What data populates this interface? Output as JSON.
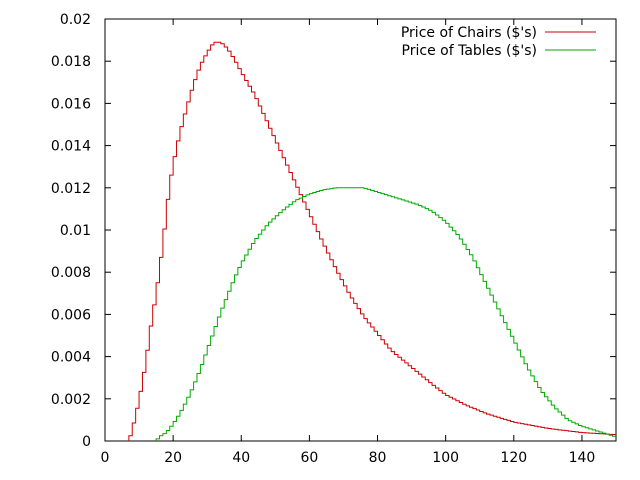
{
  "chart_data": {
    "type": "line",
    "style": "steps",
    "title": "",
    "xlabel": "",
    "ylabel": "",
    "xlim": [
      0,
      150
    ],
    "ylim": [
      0,
      0.02
    ],
    "x_ticks": [
      0,
      20,
      40,
      60,
      80,
      100,
      120,
      140
    ],
    "y_ticks": [
      0,
      0.002,
      0.004,
      0.006,
      0.008,
      0.01,
      0.012,
      0.014,
      0.016,
      0.018,
      0.02
    ],
    "x_tick_labels": [
      "0",
      "20",
      "40",
      "60",
      "80",
      "100",
      "120",
      "140"
    ],
    "y_tick_labels": [
      "0",
      "0.002",
      "0.004",
      "0.006",
      "0.008",
      "0.01",
      "0.012",
      "0.014",
      "0.016",
      "0.018",
      "0.02"
    ],
    "grid": false,
    "legend_position": "top-right",
    "series": [
      {
        "name": "Price of Chairs ($'s)",
        "color": "#cc0000",
        "points": [
          [
            7,
            0
          ],
          [
            8,
            0.0005
          ],
          [
            9,
            0.0012
          ],
          [
            10,
            0.0019
          ],
          [
            11,
            0.0028
          ],
          [
            12,
            0.0037
          ],
          [
            13,
            0.0049
          ],
          [
            14,
            0.006
          ],
          [
            15,
            0.0069
          ],
          [
            16,
            0.0081
          ],
          [
            17,
            0.0093
          ],
          [
            18,
            0.0108
          ],
          [
            19,
            0.0121
          ],
          [
            20,
            0.0131
          ],
          [
            22,
            0.0146
          ],
          [
            24,
            0.0158
          ],
          [
            26,
            0.0169
          ],
          [
            28,
            0.0178
          ],
          [
            30,
            0.0184
          ],
          [
            32,
            0.0189
          ],
          [
            34,
            0.0189
          ],
          [
            36,
            0.0186
          ],
          [
            38,
            0.0181
          ],
          [
            40,
            0.0175
          ],
          [
            44,
            0.0164
          ],
          [
            48,
            0.015
          ],
          [
            52,
            0.0136
          ],
          [
            56,
            0.0122
          ],
          [
            60,
            0.0108
          ],
          [
            64,
            0.0094
          ],
          [
            68,
            0.0081
          ],
          [
            72,
            0.0069
          ],
          [
            76,
            0.0059
          ],
          [
            80,
            0.0051
          ],
          [
            84,
            0.0043
          ],
          [
            90,
            0.0035
          ],
          [
            96,
            0.0027
          ],
          [
            100,
            0.0022
          ],
          [
            106,
            0.0017
          ],
          [
            112,
            0.0013
          ],
          [
            120,
            0.0009
          ],
          [
            130,
            0.0006
          ],
          [
            140,
            0.0004
          ],
          [
            150,
            0.0003
          ]
        ]
      },
      {
        "name": "Price of Tables ($'s)",
        "color": "#00aa00",
        "points": [
          [
            15,
            0
          ],
          [
            16,
            0.0002
          ],
          [
            18,
            0.0004
          ],
          [
            20,
            0.0008
          ],
          [
            22,
            0.0013
          ],
          [
            24,
            0.0019
          ],
          [
            26,
            0.0026
          ],
          [
            28,
            0.0034
          ],
          [
            30,
            0.0043
          ],
          [
            32,
            0.0052
          ],
          [
            34,
            0.0061
          ],
          [
            36,
            0.0069
          ],
          [
            38,
            0.0077
          ],
          [
            40,
            0.0084
          ],
          [
            44,
            0.0095
          ],
          [
            48,
            0.0103
          ],
          [
            52,
            0.0109
          ],
          [
            56,
            0.0114
          ],
          [
            60,
            0.0117
          ],
          [
            64,
            0.0119
          ],
          [
            68,
            0.012
          ],
          [
            72,
            0.012
          ],
          [
            76,
            0.012
          ],
          [
            80,
            0.0118
          ],
          [
            84,
            0.0116
          ],
          [
            88,
            0.0114
          ],
          [
            92,
            0.0112
          ],
          [
            96,
            0.0109
          ],
          [
            100,
            0.0104
          ],
          [
            104,
            0.0097
          ],
          [
            108,
            0.0087
          ],
          [
            112,
            0.0074
          ],
          [
            116,
            0.0061
          ],
          [
            120,
            0.0048
          ],
          [
            124,
            0.0035
          ],
          [
            128,
            0.0024
          ],
          [
            132,
            0.0016
          ],
          [
            136,
            0.001
          ],
          [
            140,
            0.0007
          ],
          [
            144,
            0.0005
          ],
          [
            148,
            0.0003
          ],
          [
            150,
            0.0002
          ]
        ]
      }
    ]
  }
}
